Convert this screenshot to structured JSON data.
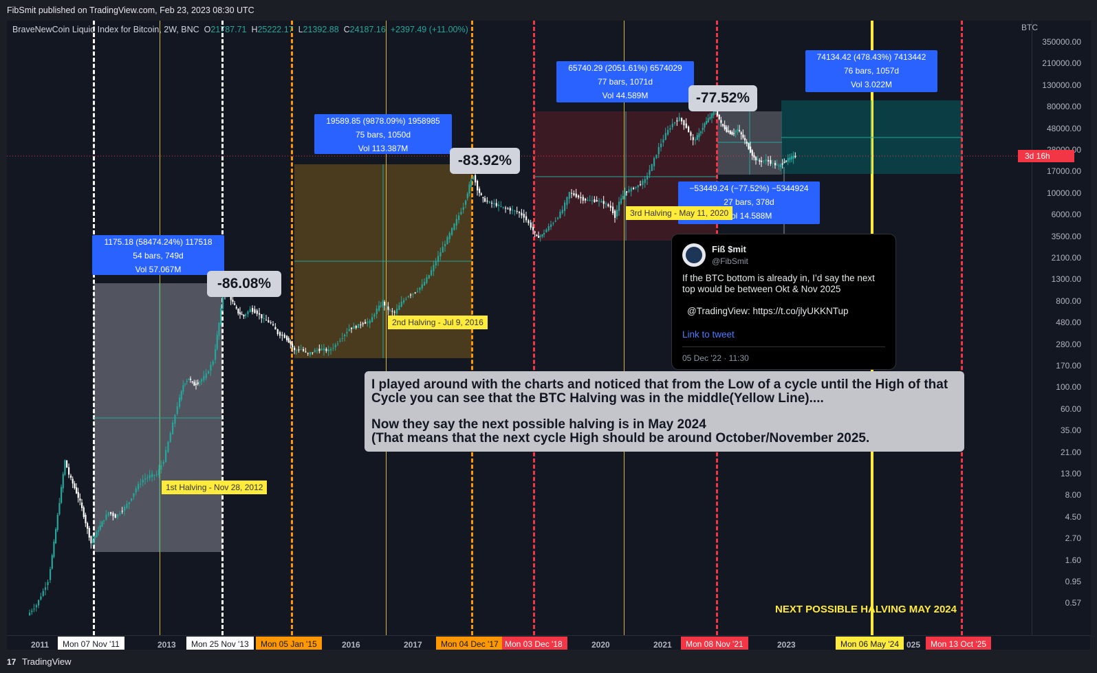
{
  "header": {
    "published": "FibSmit published on TradingView.com, Feb 23, 2023 08:30 UTC"
  },
  "legend": {
    "title": "BraveNewCoin Liquid Index for Bitcoin, 2W, BNC",
    "o_label": "O",
    "o_value": "21787.71",
    "h_label": "H",
    "h_value": "25222.17",
    "l_label": "L",
    "l_value": "21392.88",
    "c_label": "C",
    "c_value": "24187.16",
    "change": "+2397.49 (+11.00%)"
  },
  "price_axis": {
    "currency": "BTC",
    "ticks": [
      "350000.00",
      "210000.00",
      "130000.00",
      "80000.00",
      "48000.00",
      "28000.00",
      "17000.00",
      "10000.00",
      "6000.00",
      "3500.00",
      "2100.00",
      "1300.00",
      "800.00",
      "480.00",
      "280.00",
      "170.00",
      "100.00",
      "60.00",
      "35.00",
      "21.00",
      "13.00",
      "8.00",
      "4.50",
      "2.70",
      "1.60",
      "0.95",
      "0.57"
    ],
    "countdown": "3d 16h"
  },
  "time_axis": {
    "ticks": [
      "2011",
      "2013",
      "2016",
      "2017",
      "2020",
      "2021",
      "2023"
    ],
    "partial_label": "025",
    "badges": [
      "Mon 07 Nov '11",
      "Mon 25 Nov '13",
      "Mon 05 Jan '15",
      "Mon 04 Dec '17",
      "Mon 03 Dec '18",
      "Mon 08 Nov '21",
      "Mon 06 May '24",
      "Mon 13 Oct '25"
    ]
  },
  "measures": [
    {
      "line1": "1175.18 (58474.24%) 117518",
      "line2": "54 bars, 749d",
      "line3": "Vol 57.067M"
    },
    {
      "line1": "19589.85 (9878.09%) 1958985",
      "line2": "75 bars, 1050d",
      "line3": "Vol 113.387M"
    },
    {
      "line1": "65740.29 (2051.61%) 6574029",
      "line2": "77 bars, 1071d",
      "line3": "Vol 44.589M"
    },
    {
      "line1": "74134.42 (478.43%) 7413442",
      "line2": "76 bars, 1057d",
      "line3": "Vol 3.022M"
    },
    {
      "line1": "−53449.24 (−77.52%) −5344924",
      "line2": "27 bars, 378d",
      "line3": "Vol 14.588M"
    }
  ],
  "drawdowns": [
    "-86.08%",
    "-83.92%",
    "-77.52%"
  ],
  "halvings": [
    "1st Halving - Nov 28, 2012",
    "2nd Halving - Jul 9, 2016",
    "3rd Halving - May 11, 2020"
  ],
  "tweet": {
    "name": "Fiß $mit",
    "handle": "@FibSmit",
    "text": "If the BTC bottom is already in, I’d say the next top would be between Okt & Nov 2025",
    "mention": "@TradingView: https://t.co/jlyUKKNTup",
    "link": "Link to tweet",
    "date": "05 Dec '22 · 11:30"
  },
  "note": {
    "line1": "I played around with the charts and noticed that from the Low of a cycle until the High of that",
    "line2": "Cycle you can see that the BTC Halving was in the middle(Yellow Line)....",
    "line3": "Now they say the next possible halving is in May 2024",
    "line4": "(That means that the next cycle High should be around October/November 2025."
  },
  "next_halving": "NEXT POSSIBLE HALVING MAY 2024",
  "footer": {
    "brand": "TradingView"
  },
  "colors": {
    "up": "#26a69a",
    "down": "#ffffff",
    "info": "#2962ff",
    "halving": "#ffeb3b",
    "cycle_white": "#ffffff",
    "cycle_orange": "#ff9800",
    "cycle_red": "#f23645"
  }
}
